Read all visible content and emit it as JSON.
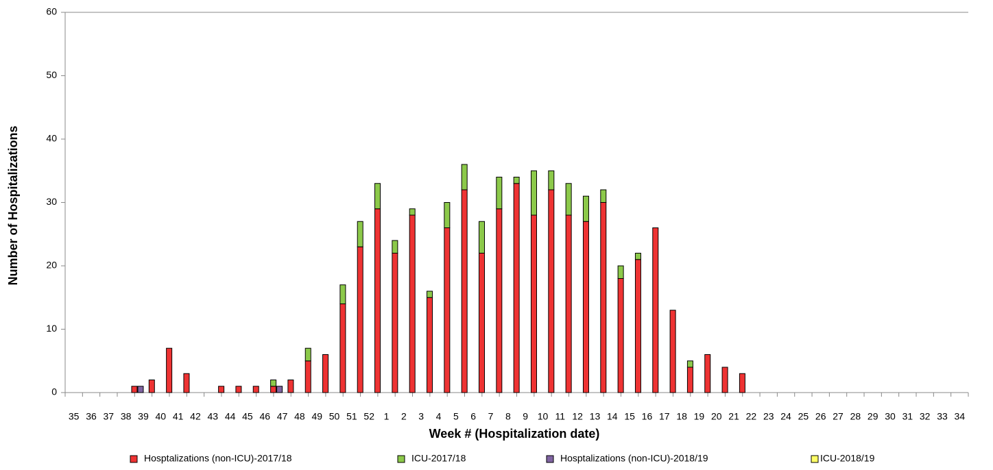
{
  "chart_data": {
    "type": "bar",
    "stacked": true,
    "x_label": "Week # (Hospitalization date)",
    "y_label": "Number of Hospitalizations",
    "categories": [
      "35",
      "36",
      "37",
      "38",
      "39",
      "40",
      "41",
      "42",
      "43",
      "44",
      "45",
      "46",
      "47",
      "48",
      "49",
      "50",
      "51",
      "52",
      "1",
      "2",
      "3",
      "4",
      "5",
      "6",
      "7",
      "8",
      "9",
      "10",
      "11",
      "12",
      "13",
      "14",
      "15",
      "16",
      "17",
      "18",
      "19",
      "20",
      "21",
      "22",
      "23",
      "24",
      "25",
      "26",
      "27",
      "28",
      "29",
      "30",
      "31",
      "32",
      "33",
      "34"
    ],
    "series": [
      {
        "name": "Hosptalizations (non-ICU)-2017/18",
        "color": "#ee3333",
        "values": [
          0,
          0,
          0,
          0,
          1,
          2,
          7,
          3,
          0,
          1,
          1,
          1,
          1,
          2,
          5,
          6,
          14,
          23,
          29,
          22,
          28,
          15,
          26,
          32,
          22,
          29,
          33,
          28,
          32,
          28,
          27,
          30,
          18,
          21,
          26,
          13,
          4,
          6,
          4,
          3,
          0,
          0,
          0,
          0,
          0,
          0,
          0,
          0,
          0,
          0,
          0,
          0
        ]
      },
      {
        "name": "ICU-2017/18",
        "color": "#8cc94a",
        "values": [
          0,
          0,
          0,
          0,
          0,
          0,
          0,
          0,
          0,
          0,
          0,
          0,
          1,
          0,
          2,
          0,
          3,
          4,
          4,
          2,
          1,
          1,
          4,
          4,
          5,
          5,
          1,
          7,
          3,
          5,
          4,
          2,
          2,
          1,
          0,
          0,
          1,
          0,
          0,
          0,
          0,
          0,
          0,
          0,
          0,
          0,
          0,
          0,
          0,
          0,
          0,
          0
        ]
      },
      {
        "name": "Hosptalizations (non-ICU)-2018/19",
        "color": "#8064a2",
        "values": [
          0,
          0,
          0,
          0,
          1,
          0,
          0,
          0,
          0,
          0,
          0,
          0,
          1,
          0,
          0,
          0,
          0,
          0,
          0,
          0,
          0,
          0,
          0,
          0,
          0,
          0,
          0,
          0,
          0,
          0,
          0,
          0,
          0,
          0,
          0,
          0,
          0,
          0,
          0,
          0,
          0,
          0,
          0,
          0,
          0,
          0,
          0,
          0,
          0,
          0,
          0,
          0
        ]
      },
      {
        "name": "ICU-2018/19",
        "color": "#ffff66",
        "values": [
          0,
          0,
          0,
          0,
          0,
          0,
          0,
          0,
          0,
          0,
          0,
          0,
          0,
          0,
          0,
          0,
          0,
          0,
          0,
          0,
          0,
          0,
          0,
          0,
          0,
          0,
          0,
          0,
          0,
          0,
          0,
          0,
          0,
          0,
          0,
          0,
          0,
          0,
          0,
          0,
          0,
          0,
          0,
          0,
          0,
          0,
          0,
          0,
          0,
          0,
          0,
          0
        ]
      }
    ],
    "ylim": [
      0,
      60
    ],
    "yticks": [
      0,
      10,
      20,
      30,
      40,
      50,
      60
    ],
    "grid": false,
    "legend": "bottom"
  }
}
